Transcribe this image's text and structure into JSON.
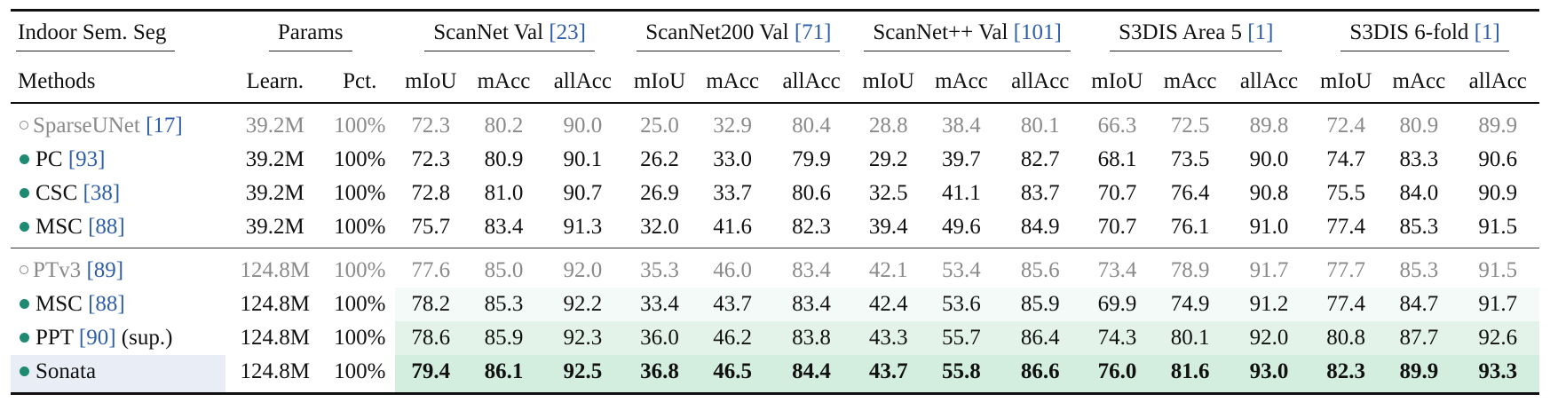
{
  "header": {
    "task_label": "Indoor Sem. Seg",
    "methods_label": "Methods",
    "params_label": "Params",
    "param_cols": [
      "Learn.",
      "Pct."
    ],
    "datasets": [
      {
        "name": "ScanNet Val",
        "cite": "[23]"
      },
      {
        "name": "ScanNet200 Val",
        "cite": "[71]"
      },
      {
        "name": "ScanNet++ Val",
        "cite": "[101]"
      },
      {
        "name": "S3DIS Area 5",
        "cite": "[1]"
      },
      {
        "name": "S3DIS 6-fold",
        "cite": "[1]"
      }
    ],
    "metrics": [
      "mIoU",
      "mAcc",
      "allAcc"
    ]
  },
  "row_highlight_colors": {
    "msc_ptv3": "#f4faf7",
    "ppt": "#e3f3ea",
    "sonata": "#d3eddf",
    "sonata_method_cell": "#e9eef6"
  },
  "groups": [
    {
      "rows": [
        {
          "marker": "circle",
          "name": "SparseUNet",
          "cite": "[17]",
          "suffix": "",
          "baseline": true,
          "bold": false,
          "learn": "39.2M",
          "pct": "100%",
          "values": [
            "72.3",
            "80.2",
            "90.0",
            "25.0",
            "32.9",
            "80.4",
            "28.8",
            "38.4",
            "80.1",
            "66.3",
            "72.5",
            "89.8",
            "72.4",
            "80.9",
            "89.9"
          ]
        },
        {
          "marker": "dot",
          "name": "PC",
          "cite": "[93]",
          "suffix": "",
          "baseline": false,
          "bold": false,
          "learn": "39.2M",
          "pct": "100%",
          "values": [
            "72.3",
            "80.9",
            "90.1",
            "26.2",
            "33.0",
            "79.9",
            "29.2",
            "39.7",
            "82.7",
            "68.1",
            "73.5",
            "90.0",
            "74.7",
            "83.3",
            "90.6"
          ]
        },
        {
          "marker": "dot",
          "name": "CSC",
          "cite": "[38]",
          "suffix": "",
          "baseline": false,
          "bold": false,
          "learn": "39.2M",
          "pct": "100%",
          "values": [
            "72.8",
            "81.0",
            "90.7",
            "26.9",
            "33.7",
            "80.6",
            "32.5",
            "41.1",
            "83.7",
            "70.7",
            "76.4",
            "90.8",
            "75.5",
            "84.0",
            "90.9"
          ]
        },
        {
          "marker": "dot",
          "name": "MSC",
          "cite": "[88]",
          "suffix": "",
          "baseline": false,
          "bold": false,
          "learn": "39.2M",
          "pct": "100%",
          "values": [
            "75.7",
            "83.4",
            "91.3",
            "32.0",
            "41.6",
            "82.3",
            "39.4",
            "49.6",
            "84.9",
            "70.7",
            "76.1",
            "91.0",
            "77.4",
            "85.3",
            "91.5"
          ]
        }
      ]
    },
    {
      "rows": [
        {
          "marker": "circle",
          "name": "PTv3",
          "cite": "[89]",
          "suffix": "",
          "baseline": true,
          "bold": false,
          "learn": "124.8M",
          "pct": "100%",
          "values": [
            "77.6",
            "85.0",
            "92.0",
            "35.3",
            "46.0",
            "83.4",
            "42.1",
            "53.4",
            "85.6",
            "73.4",
            "78.9",
            "91.7",
            "77.7",
            "85.3",
            "91.5"
          ]
        },
        {
          "marker": "dot",
          "name": "MSC",
          "cite": "[88]",
          "suffix": "",
          "baseline": false,
          "bold": false,
          "highlight": "msc_ptv3",
          "learn": "124.8M",
          "pct": "100%",
          "values": [
            "78.2",
            "85.3",
            "92.2",
            "33.4",
            "43.7",
            "83.4",
            "42.4",
            "53.6",
            "85.9",
            "69.9",
            "74.9",
            "91.2",
            "77.4",
            "84.7",
            "91.7"
          ]
        },
        {
          "marker": "dot",
          "name": "PPT",
          "cite": "[90]",
          "suffix": "(sup.)",
          "baseline": false,
          "bold": false,
          "highlight": "ppt",
          "learn": "124.8M",
          "pct": "100%",
          "values": [
            "78.6",
            "85.9",
            "92.3",
            "36.0",
            "46.2",
            "83.8",
            "43.3",
            "55.7",
            "86.4",
            "74.3",
            "80.1",
            "92.0",
            "80.8",
            "87.7",
            "92.6"
          ]
        },
        {
          "marker": "dot",
          "name": "Sonata",
          "cite": "",
          "suffix": "",
          "baseline": false,
          "bold": true,
          "highlight": "sonata",
          "learn": "124.8M",
          "pct": "100%",
          "values": [
            "79.4",
            "86.1",
            "92.5",
            "36.8",
            "46.5",
            "84.4",
            "43.7",
            "55.8",
            "86.6",
            "76.0",
            "81.6",
            "93.0",
            "82.3",
            "89.9",
            "93.3"
          ]
        }
      ]
    }
  ]
}
